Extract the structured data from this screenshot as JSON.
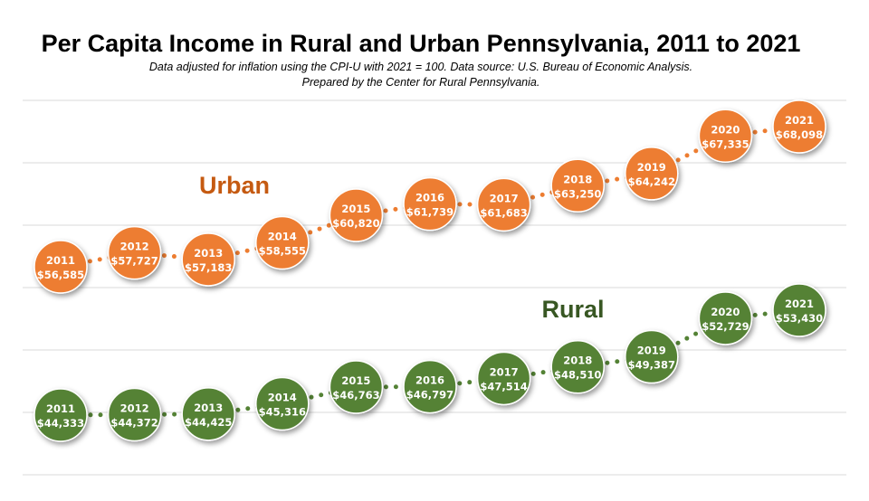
{
  "colors": {
    "urban": "#ED7D31",
    "rural": "#548235",
    "urban_label": "#C55A11",
    "rural_label": "#385723"
  },
  "chart_data": {
    "type": "line",
    "title": "Per Capita Income in Rural and Urban Pennsylvania, 2011 to 2021",
    "subtitle_line1": "Data adjusted for inflation using the CPI-U with 2021 = 100.  Data source: U.S. Bureau of Economic Analysis.",
    "subtitle_line2": "Prepared by the Center for Rural Pennsylvania.",
    "x": [
      "2011",
      "2012",
      "2013",
      "2014",
      "2015",
      "2016",
      "2017",
      "2018",
      "2019",
      "2020",
      "2021"
    ],
    "series": [
      {
        "name": "Urban",
        "values": [
          56585,
          57727,
          57183,
          58555,
          60820,
          61739,
          61683,
          63250,
          64242,
          67335,
          68098
        ],
        "labels": [
          "$56,585",
          "$57,727",
          "$57,183",
          "$58,555",
          "$60,820",
          "$61,739",
          "$61,683",
          "$63,250",
          "$64,242",
          "$67,335",
          "$68,098"
        ]
      },
      {
        "name": "Rural",
        "values": [
          44333,
          44372,
          44425,
          45316,
          46763,
          46797,
          47514,
          48510,
          49387,
          52729,
          53430
        ],
        "labels": [
          "$44,333",
          "$44,372",
          "$44,425",
          "$45,316",
          "$46,763",
          "$46,797",
          "$47,514",
          "$48,510",
          "$49,387",
          "$52,729",
          "$53,430"
        ]
      }
    ],
    "grid": true,
    "legend": "inline labels"
  }
}
